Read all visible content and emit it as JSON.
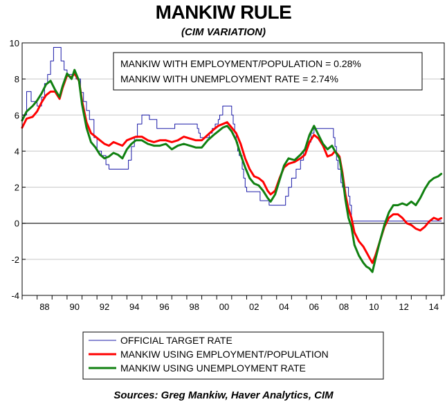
{
  "chart_data": {
    "type": "line",
    "title": "MANKIW RULE",
    "subtitle": "(CIM VARIATION)",
    "source": "Sources:  Greg Mankiw, Haver Analytics, CIM",
    "annotations": [
      "MANKIW WITH EMPLOYMENT/POPULATION = 0.28%",
      "MANKIW WITH UNEMPLOYMENT RATE = 2.74%"
    ],
    "xlabel": "",
    "ylabel": "",
    "xlim": [
      1987,
      2015.2
    ],
    "ylim": [
      -4,
      10
    ],
    "y_ticks": [
      -4,
      -2,
      0,
      2,
      4,
      6,
      8,
      10
    ],
    "x_ticks": [
      1988,
      1990,
      1992,
      1994,
      1996,
      1998,
      2000,
      2002,
      2004,
      2006,
      2008,
      2010,
      2012,
      2014
    ],
    "x_tick_labels": [
      "88",
      "90",
      "92",
      "94",
      "96",
      "98",
      "00",
      "02",
      "04",
      "06",
      "08",
      "10",
      "12",
      "14"
    ],
    "grid": true,
    "zero_line": true,
    "legend_position": "bottom",
    "series": [
      {
        "name": "OFFICIAL TARGET RATE",
        "color": "#1a1aa8",
        "step": true,
        "points": [
          [
            1987.0,
            6.0
          ],
          [
            1987.3,
            7.3
          ],
          [
            1987.6,
            6.75
          ],
          [
            1988.0,
            6.5
          ],
          [
            1988.3,
            7.0
          ],
          [
            1988.5,
            7.75
          ],
          [
            1988.7,
            8.25
          ],
          [
            1988.9,
            9.0
          ],
          [
            1989.1,
            9.75
          ],
          [
            1989.4,
            9.75
          ],
          [
            1989.6,
            9.0
          ],
          [
            1989.8,
            8.5
          ],
          [
            1990.0,
            8.25
          ],
          [
            1990.6,
            8.0
          ],
          [
            1990.9,
            7.25
          ],
          [
            1991.1,
            6.75
          ],
          [
            1991.3,
            6.25
          ],
          [
            1991.5,
            5.75
          ],
          [
            1991.8,
            4.75
          ],
          [
            1992.0,
            4.0
          ],
          [
            1992.3,
            3.75
          ],
          [
            1992.6,
            3.25
          ],
          [
            1992.8,
            3.0
          ],
          [
            1994.0,
            3.0
          ],
          [
            1994.1,
            3.5
          ],
          [
            1994.3,
            4.25
          ],
          [
            1994.5,
            4.75
          ],
          [
            1994.7,
            5.5
          ],
          [
            1995.0,
            6.0
          ],
          [
            1995.5,
            5.75
          ],
          [
            1996.0,
            5.25
          ],
          [
            1997.2,
            5.5
          ],
          [
            1998.7,
            5.25
          ],
          [
            1998.8,
            5.0
          ],
          [
            1998.9,
            4.75
          ],
          [
            1999.5,
            5.0
          ],
          [
            1999.7,
            5.25
          ],
          [
            1999.9,
            5.5
          ],
          [
            2000.1,
            5.75
          ],
          [
            2000.2,
            6.0
          ],
          [
            2000.4,
            6.5
          ],
          [
            2000.9,
            6.5
          ],
          [
            2001.0,
            6.0
          ],
          [
            2001.1,
            5.5
          ],
          [
            2001.2,
            5.0
          ],
          [
            2001.3,
            4.5
          ],
          [
            2001.4,
            4.0
          ],
          [
            2001.5,
            3.75
          ],
          [
            2001.7,
            3.0
          ],
          [
            2001.8,
            2.5
          ],
          [
            2001.9,
            2.0
          ],
          [
            2002.0,
            1.75
          ],
          [
            2002.9,
            1.25
          ],
          [
            2003.5,
            1.0
          ],
          [
            2004.5,
            1.0
          ],
          [
            2004.6,
            1.5
          ],
          [
            2004.8,
            2.0
          ],
          [
            2005.0,
            2.5
          ],
          [
            2005.3,
            3.0
          ],
          [
            2005.6,
            3.5
          ],
          [
            2005.8,
            4.0
          ],
          [
            2006.0,
            4.5
          ],
          [
            2006.3,
            5.0
          ],
          [
            2006.5,
            5.25
          ],
          [
            2007.7,
            5.25
          ],
          [
            2007.8,
            4.75
          ],
          [
            2007.9,
            4.25
          ],
          [
            2008.0,
            3.5
          ],
          [
            2008.1,
            3.0
          ],
          [
            2008.3,
            2.25
          ],
          [
            2008.4,
            2.0
          ],
          [
            2008.8,
            1.5
          ],
          [
            2008.9,
            1.0
          ],
          [
            2009.0,
            0.125
          ],
          [
            2015.0,
            0.125
          ]
        ]
      },
      {
        "name": "MANKIW USING EMPLOYMENT/POPULATION",
        "color": "#ff0000",
        "points": [
          [
            1987.0,
            5.3
          ],
          [
            1987.3,
            5.8
          ],
          [
            1987.7,
            5.9
          ],
          [
            1988.0,
            6.2
          ],
          [
            1988.3,
            6.7
          ],
          [
            1988.6,
            7.1
          ],
          [
            1988.9,
            7.3
          ],
          [
            1989.2,
            7.3
          ],
          [
            1989.5,
            6.9
          ],
          [
            1989.7,
            7.5
          ],
          [
            1990.0,
            8.2
          ],
          [
            1990.3,
            8.1
          ],
          [
            1990.5,
            8.3
          ],
          [
            1990.8,
            7.9
          ],
          [
            1991.0,
            6.8
          ],
          [
            1991.3,
            5.6
          ],
          [
            1991.6,
            5.0
          ],
          [
            1991.9,
            4.8
          ],
          [
            1992.2,
            4.6
          ],
          [
            1992.5,
            4.4
          ],
          [
            1992.8,
            4.3
          ],
          [
            1993.1,
            4.5
          ],
          [
            1993.4,
            4.4
          ],
          [
            1993.7,
            4.3
          ],
          [
            1994.0,
            4.6
          ],
          [
            1994.3,
            4.7
          ],
          [
            1994.6,
            4.8
          ],
          [
            1995.0,
            4.8
          ],
          [
            1995.4,
            4.6
          ],
          [
            1995.8,
            4.5
          ],
          [
            1996.2,
            4.6
          ],
          [
            1996.6,
            4.6
          ],
          [
            1997.0,
            4.5
          ],
          [
            1997.4,
            4.6
          ],
          [
            1997.8,
            4.8
          ],
          [
            1998.2,
            4.7
          ],
          [
            1998.6,
            4.6
          ],
          [
            1999.0,
            4.6
          ],
          [
            1999.4,
            4.9
          ],
          [
            1999.8,
            5.2
          ],
          [
            2000.1,
            5.4
          ],
          [
            2000.4,
            5.5
          ],
          [
            2000.7,
            5.6
          ],
          [
            2001.0,
            5.3
          ],
          [
            2001.3,
            5.0
          ],
          [
            2001.6,
            4.4
          ],
          [
            2001.9,
            3.6
          ],
          [
            2002.2,
            3.0
          ],
          [
            2002.5,
            2.6
          ],
          [
            2002.8,
            2.5
          ],
          [
            2003.1,
            2.3
          ],
          [
            2003.4,
            1.8
          ],
          [
            2003.6,
            1.6
          ],
          [
            2003.9,
            1.8
          ],
          [
            2004.2,
            2.5
          ],
          [
            2004.5,
            3.1
          ],
          [
            2004.8,
            3.3
          ],
          [
            2005.2,
            3.4
          ],
          [
            2005.6,
            3.6
          ],
          [
            2005.9,
            3.8
          ],
          [
            2006.2,
            4.5
          ],
          [
            2006.5,
            4.9
          ],
          [
            2006.8,
            4.7
          ],
          [
            2007.1,
            4.3
          ],
          [
            2007.4,
            3.7
          ],
          [
            2007.7,
            3.8
          ],
          [
            2007.9,
            4.0
          ],
          [
            2008.2,
            3.7
          ],
          [
            2008.4,
            2.8
          ],
          [
            2008.6,
            1.6
          ],
          [
            2008.8,
            0.8
          ],
          [
            2009.0,
            0.3
          ],
          [
            2009.2,
            -0.5
          ],
          [
            2009.5,
            -1.0
          ],
          [
            2009.8,
            -1.3
          ],
          [
            2010.0,
            -1.6
          ],
          [
            2010.2,
            -1.9
          ],
          [
            2010.4,
            -2.2
          ],
          [
            2010.6,
            -1.8
          ],
          [
            2010.9,
            -1.0
          ],
          [
            2011.2,
            -0.2
          ],
          [
            2011.5,
            0.3
          ],
          [
            2011.8,
            0.5
          ],
          [
            2012.1,
            0.5
          ],
          [
            2012.4,
            0.3
          ],
          [
            2012.7,
            0.0
          ],
          [
            2013.0,
            -0.1
          ],
          [
            2013.3,
            -0.3
          ],
          [
            2013.6,
            -0.4
          ],
          [
            2013.9,
            -0.2
          ],
          [
            2014.2,
            0.1
          ],
          [
            2014.5,
            0.3
          ],
          [
            2014.8,
            0.2
          ],
          [
            2015.0,
            0.28
          ]
        ]
      },
      {
        "name": "MANKIW USING UNEMPLOYMENT RATE",
        "color": "#108010",
        "points": [
          [
            1987.0,
            5.7
          ],
          [
            1987.3,
            6.2
          ],
          [
            1987.7,
            6.5
          ],
          [
            1988.0,
            6.8
          ],
          [
            1988.3,
            7.2
          ],
          [
            1988.6,
            7.7
          ],
          [
            1988.9,
            7.9
          ],
          [
            1989.2,
            7.4
          ],
          [
            1989.5,
            7.0
          ],
          [
            1989.7,
            7.6
          ],
          [
            1990.0,
            8.3
          ],
          [
            1990.3,
            8.0
          ],
          [
            1990.5,
            8.5
          ],
          [
            1990.8,
            7.9
          ],
          [
            1991.0,
            6.6
          ],
          [
            1991.3,
            5.3
          ],
          [
            1991.6,
            4.5
          ],
          [
            1991.9,
            4.2
          ],
          [
            1992.2,
            3.8
          ],
          [
            1992.5,
            3.6
          ],
          [
            1992.8,
            3.7
          ],
          [
            1993.1,
            3.9
          ],
          [
            1993.4,
            3.8
          ],
          [
            1993.7,
            3.6
          ],
          [
            1994.0,
            4.1
          ],
          [
            1994.3,
            4.4
          ],
          [
            1994.6,
            4.6
          ],
          [
            1995.0,
            4.6
          ],
          [
            1995.4,
            4.4
          ],
          [
            1995.8,
            4.3
          ],
          [
            1996.2,
            4.3
          ],
          [
            1996.6,
            4.4
          ],
          [
            1997.0,
            4.1
          ],
          [
            1997.4,
            4.3
          ],
          [
            1997.8,
            4.4
          ],
          [
            1998.2,
            4.3
          ],
          [
            1998.6,
            4.2
          ],
          [
            1999.0,
            4.2
          ],
          [
            1999.4,
            4.6
          ],
          [
            1999.8,
            4.9
          ],
          [
            2000.1,
            5.1
          ],
          [
            2000.4,
            5.3
          ],
          [
            2000.7,
            5.4
          ],
          [
            2001.0,
            5.1
          ],
          [
            2001.3,
            4.6
          ],
          [
            2001.6,
            3.8
          ],
          [
            2001.9,
            3.1
          ],
          [
            2002.2,
            2.5
          ],
          [
            2002.5,
            2.2
          ],
          [
            2002.8,
            2.1
          ],
          [
            2003.1,
            1.8
          ],
          [
            2003.4,
            1.4
          ],
          [
            2003.6,
            1.2
          ],
          [
            2003.9,
            1.6
          ],
          [
            2004.2,
            2.4
          ],
          [
            2004.5,
            3.2
          ],
          [
            2004.8,
            3.6
          ],
          [
            2005.2,
            3.5
          ],
          [
            2005.6,
            3.8
          ],
          [
            2005.9,
            4.1
          ],
          [
            2006.2,
            4.9
          ],
          [
            2006.5,
            5.4
          ],
          [
            2006.8,
            4.9
          ],
          [
            2007.1,
            4.4
          ],
          [
            2007.4,
            4.1
          ],
          [
            2007.7,
            4.3
          ],
          [
            2007.9,
            4.0
          ],
          [
            2008.2,
            3.6
          ],
          [
            2008.4,
            2.6
          ],
          [
            2008.6,
            1.3
          ],
          [
            2008.8,
            0.3
          ],
          [
            2009.0,
            -0.2
          ],
          [
            2009.2,
            -1.2
          ],
          [
            2009.5,
            -1.8
          ],
          [
            2009.8,
            -2.2
          ],
          [
            2010.0,
            -2.4
          ],
          [
            2010.2,
            -2.5
          ],
          [
            2010.4,
            -2.7
          ],
          [
            2010.6,
            -2.0
          ],
          [
            2010.9,
            -1.0
          ],
          [
            2011.2,
            -0.1
          ],
          [
            2011.5,
            0.6
          ],
          [
            2011.8,
            1.0
          ],
          [
            2012.1,
            1.0
          ],
          [
            2012.4,
            1.1
          ],
          [
            2012.7,
            1.0
          ],
          [
            2013.0,
            1.2
          ],
          [
            2013.3,
            1.0
          ],
          [
            2013.6,
            1.4
          ],
          [
            2013.9,
            1.9
          ],
          [
            2014.2,
            2.3
          ],
          [
            2014.5,
            2.5
          ],
          [
            2014.8,
            2.6
          ],
          [
            2015.0,
            2.74
          ]
        ]
      }
    ]
  }
}
